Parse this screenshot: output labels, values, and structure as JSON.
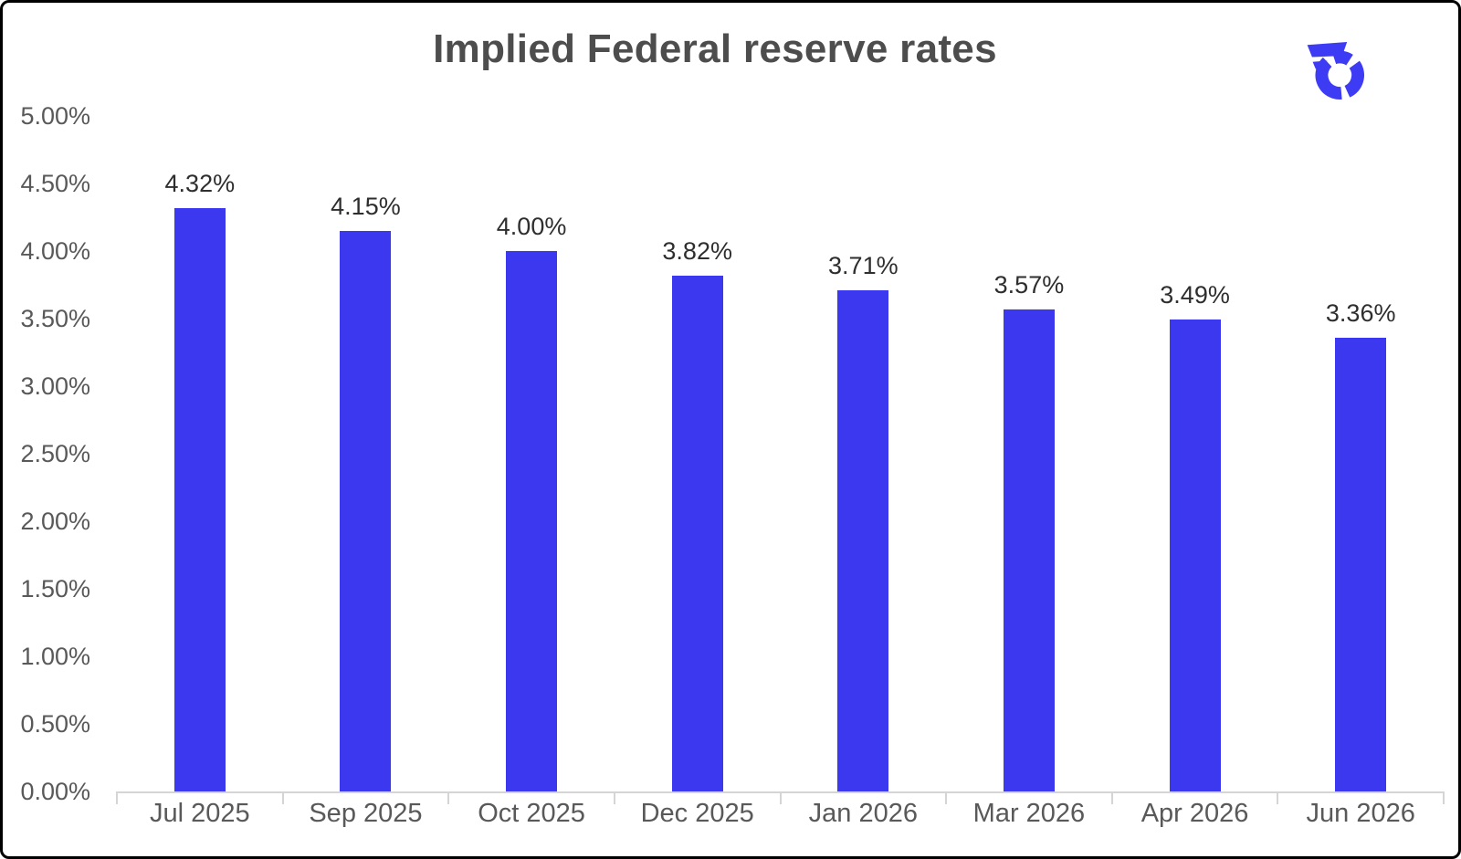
{
  "header": {
    "title": "Implied Federal reserve rates",
    "logo_icon": "winged-wheel-logo"
  },
  "colors": {
    "bar": "#3b38f0",
    "logo": "#3d3bf3",
    "title_text": "#4d4d4d",
    "axis_text": "#595959",
    "value_text": "#2e2e2e",
    "axis_line": "#d5d5d5",
    "background": "#ffffff",
    "frame_border": "#000000"
  },
  "chart_data": {
    "type": "bar",
    "title": "Implied Federal reserve rates",
    "categories": [
      "Jul 2025",
      "Sep 2025",
      "Oct 2025",
      "Dec 2025",
      "Jan 2026",
      "Mar 2026",
      "Apr 2026",
      "Jun 2026"
    ],
    "values": [
      4.32,
      4.15,
      4.0,
      3.82,
      3.71,
      3.57,
      3.49,
      3.36
    ],
    "value_labels": [
      "4.32%",
      "4.15%",
      "4.00%",
      "3.82%",
      "3.71%",
      "3.57%",
      "3.49%",
      "3.36%"
    ],
    "xlabel": "",
    "ylabel": "",
    "ylim": [
      0,
      5
    ],
    "ytick_step": 0.5,
    "ytick_labels": [
      "0.00%",
      "0.50%",
      "1.00%",
      "1.50%",
      "2.00%",
      "2.50%",
      "3.00%",
      "3.50%",
      "4.00%",
      "4.50%",
      "5.00%"
    ],
    "grid": false,
    "legend": "none",
    "bar_color": "#3b38f0"
  }
}
